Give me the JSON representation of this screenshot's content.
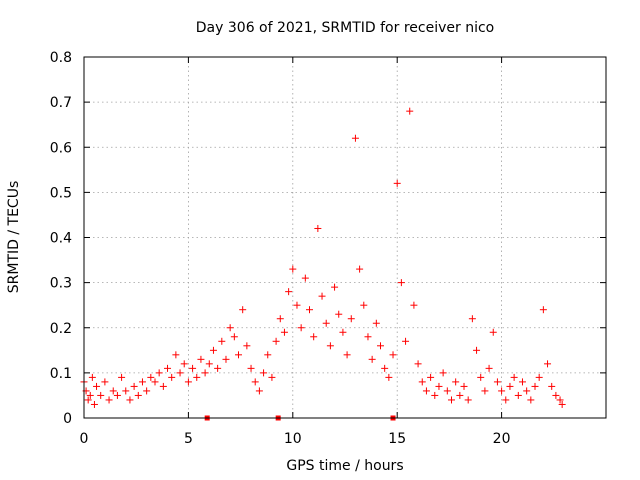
{
  "chart_data": {
    "type": "scatter",
    "title": "Day 306 of 2021, SRMTID for receiver nico",
    "xlabel": "GPS time / hours",
    "ylabel": "SRMTID / TECUs",
    "xlim": [
      0,
      25
    ],
    "ylim": [
      0,
      0.8
    ],
    "xticks": [
      0,
      5,
      10,
      15,
      20
    ],
    "xtick_labels": [
      "0",
      "5",
      "10",
      "15",
      "20"
    ],
    "yticks": [
      0,
      0.1,
      0.2,
      0.3,
      0.4,
      0.5,
      0.6,
      0.7,
      0.8
    ],
    "ytick_labels": [
      "0",
      "0.1",
      "0.2",
      "0.3",
      "0.4",
      "0.5",
      "0.6",
      "0.7",
      "0.8"
    ],
    "grid": true,
    "marker": "+",
    "color": "#ff0000",
    "data_gap_markers_x": [
      5.9,
      9.3,
      14.8
    ],
    "series": [
      {
        "name": "nico",
        "points": [
          [
            0.0,
            0.08
          ],
          [
            0.1,
            0.06
          ],
          [
            0.2,
            0.04
          ],
          [
            0.3,
            0.05
          ],
          [
            0.4,
            0.09
          ],
          [
            0.5,
            0.03
          ],
          [
            0.6,
            0.07
          ],
          [
            0.8,
            0.05
          ],
          [
            1.0,
            0.08
          ],
          [
            1.2,
            0.04
          ],
          [
            1.4,
            0.06
          ],
          [
            1.6,
            0.05
          ],
          [
            1.8,
            0.09
          ],
          [
            2.0,
            0.06
          ],
          [
            2.2,
            0.04
          ],
          [
            2.4,
            0.07
          ],
          [
            2.6,
            0.05
          ],
          [
            2.8,
            0.08
          ],
          [
            3.0,
            0.06
          ],
          [
            3.2,
            0.09
          ],
          [
            3.4,
            0.08
          ],
          [
            3.6,
            0.1
          ],
          [
            3.8,
            0.07
          ],
          [
            4.0,
            0.11
          ],
          [
            4.2,
            0.09
          ],
          [
            4.4,
            0.14
          ],
          [
            4.6,
            0.1
          ],
          [
            4.8,
            0.12
          ],
          [
            5.0,
            0.08
          ],
          [
            5.2,
            0.11
          ],
          [
            5.4,
            0.09
          ],
          [
            5.6,
            0.13
          ],
          [
            5.8,
            0.1
          ],
          [
            6.0,
            0.12
          ],
          [
            6.2,
            0.15
          ],
          [
            6.4,
            0.11
          ],
          [
            6.6,
            0.17
          ],
          [
            6.8,
            0.13
          ],
          [
            7.0,
            0.2
          ],
          [
            7.2,
            0.18
          ],
          [
            7.4,
            0.14
          ],
          [
            7.6,
            0.24
          ],
          [
            7.8,
            0.16
          ],
          [
            8.0,
            0.11
          ],
          [
            8.2,
            0.08
          ],
          [
            8.4,
            0.06
          ],
          [
            8.6,
            0.1
          ],
          [
            8.8,
            0.14
          ],
          [
            9.0,
            0.09
          ],
          [
            9.2,
            0.17
          ],
          [
            9.4,
            0.22
          ],
          [
            9.6,
            0.19
          ],
          [
            9.8,
            0.28
          ],
          [
            10.0,
            0.33
          ],
          [
            10.2,
            0.25
          ],
          [
            10.4,
            0.2
          ],
          [
            10.6,
            0.31
          ],
          [
            10.8,
            0.24
          ],
          [
            11.0,
            0.18
          ],
          [
            11.2,
            0.42
          ],
          [
            11.4,
            0.27
          ],
          [
            11.6,
            0.21
          ],
          [
            11.8,
            0.16
          ],
          [
            12.0,
            0.29
          ],
          [
            12.2,
            0.23
          ],
          [
            12.4,
            0.19
          ],
          [
            12.6,
            0.14
          ],
          [
            12.8,
            0.22
          ],
          [
            13.0,
            0.62
          ],
          [
            13.2,
            0.33
          ],
          [
            13.4,
            0.25
          ],
          [
            13.6,
            0.18
          ],
          [
            13.8,
            0.13
          ],
          [
            14.0,
            0.21
          ],
          [
            14.2,
            0.16
          ],
          [
            14.4,
            0.11
          ],
          [
            14.6,
            0.09
          ],
          [
            14.8,
            0.14
          ],
          [
            15.0,
            0.52
          ],
          [
            15.2,
            0.3
          ],
          [
            15.4,
            0.17
          ],
          [
            15.6,
            0.68
          ],
          [
            15.8,
            0.25
          ],
          [
            16.0,
            0.12
          ],
          [
            16.2,
            0.08
          ],
          [
            16.4,
            0.06
          ],
          [
            16.6,
            0.09
          ],
          [
            16.8,
            0.05
          ],
          [
            17.0,
            0.07
          ],
          [
            17.2,
            0.1
          ],
          [
            17.4,
            0.06
          ],
          [
            17.6,
            0.04
          ],
          [
            17.8,
            0.08
          ],
          [
            18.0,
            0.05
          ],
          [
            18.2,
            0.07
          ],
          [
            18.4,
            0.04
          ],
          [
            18.6,
            0.22
          ],
          [
            18.8,
            0.15
          ],
          [
            19.0,
            0.09
          ],
          [
            19.2,
            0.06
          ],
          [
            19.4,
            0.11
          ],
          [
            19.6,
            0.19
          ],
          [
            19.8,
            0.08
          ],
          [
            20.0,
            0.06
          ],
          [
            20.2,
            0.04
          ],
          [
            20.4,
            0.07
          ],
          [
            20.6,
            0.09
          ],
          [
            20.8,
            0.05
          ],
          [
            21.0,
            0.08
          ],
          [
            21.2,
            0.06
          ],
          [
            21.4,
            0.04
          ],
          [
            21.6,
            0.07
          ],
          [
            21.8,
            0.09
          ],
          [
            22.0,
            0.24
          ],
          [
            22.2,
            0.12
          ],
          [
            22.4,
            0.07
          ],
          [
            22.6,
            0.05
          ],
          [
            22.8,
            0.04
          ],
          [
            22.9,
            0.03
          ]
        ]
      }
    ]
  }
}
